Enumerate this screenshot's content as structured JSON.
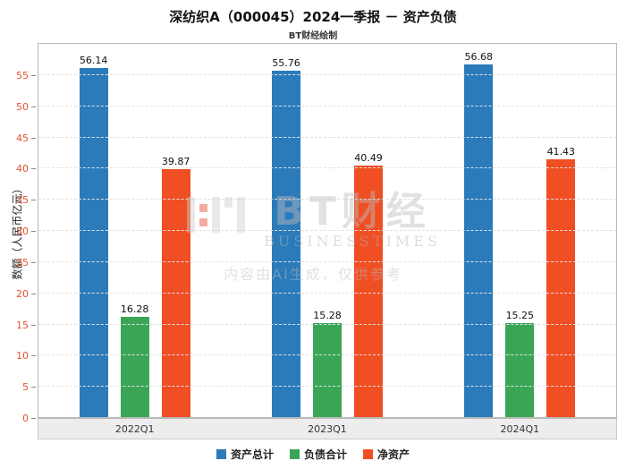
{
  "title": "深纺织A（000045）2024一季报 － 资产负债",
  "subtitle": "BT财经绘制",
  "watermark": {
    "logo_text": "BT财经",
    "logo_subtext": "BUSINESSTIMES",
    "disclaimer": "内容由AI生成，仅供参考"
  },
  "chart_data": {
    "type": "bar",
    "categories": [
      "2022Q1",
      "2023Q1",
      "2024Q1"
    ],
    "series": [
      {
        "name": "资产总计",
        "color": "#2b7bba",
        "values": [
          56.14,
          55.76,
          56.68
        ]
      },
      {
        "name": "负债合计",
        "color": "#3aa655",
        "values": [
          16.28,
          15.28,
          15.25
        ]
      },
      {
        "name": "净资产",
        "color": "#f04e23",
        "values": [
          39.87,
          40.49,
          41.43
        ]
      }
    ],
    "ylabel": "数额（人民币亿元）",
    "ylim": [
      0,
      60
    ],
    "yticks": [
      0,
      5,
      10,
      15,
      20,
      25,
      30,
      35,
      40,
      45,
      50,
      55
    ],
    "grid": true,
    "legend_position": "bottom"
  }
}
